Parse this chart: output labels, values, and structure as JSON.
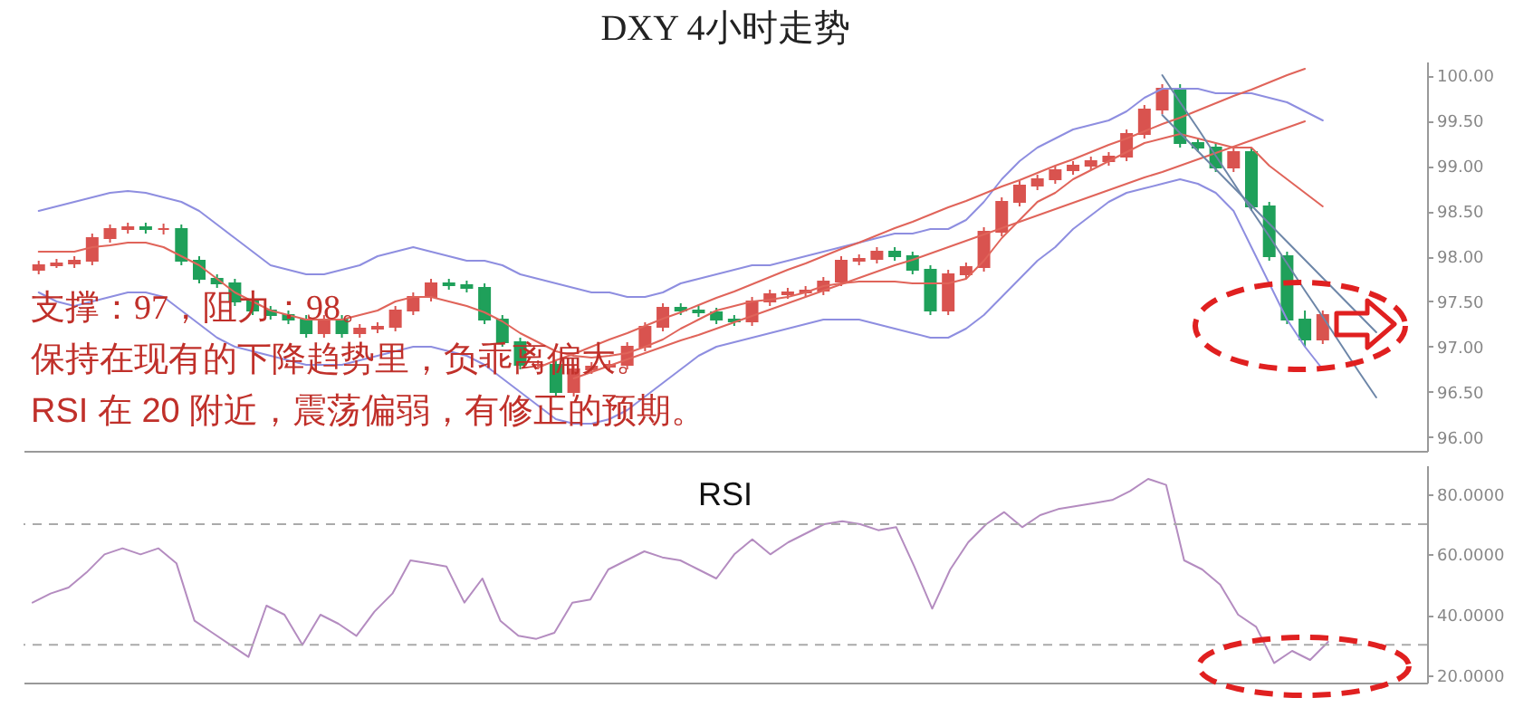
{
  "chart_data": [
    {
      "type": "candlestick",
      "title": "DXY   4小时走势",
      "categories": [
        null,
        null,
        null,
        null,
        null,
        null,
        null,
        null,
        null,
        null,
        null,
        null,
        null,
        null,
        null,
        null,
        null,
        null,
        null,
        null,
        null,
        null,
        null,
        null,
        null,
        null,
        null,
        null,
        null,
        null,
        null,
        null,
        null,
        null,
        null,
        null,
        null,
        null,
        null,
        null,
        null,
        null,
        null,
        null,
        null,
        null,
        null,
        null,
        null,
        null,
        null,
        null,
        null,
        null,
        null,
        null,
        null,
        null,
        null,
        null,
        null,
        null,
        null,
        null,
        null,
        null,
        null,
        null,
        null,
        null,
        null,
        null,
        null,
        null,
        null,
        null,
        null,
        null
      ],
      "ohlc": [
        [
          97.85,
          97.95,
          97.8,
          97.9
        ],
        [
          97.9,
          97.97,
          97.87,
          97.92
        ],
        [
          97.92,
          98.0,
          97.87,
          97.95
        ],
        [
          97.95,
          98.25,
          97.9,
          98.2
        ],
        [
          98.2,
          98.35,
          98.15,
          98.3
        ],
        [
          98.3,
          98.37,
          98.25,
          98.32
        ],
        [
          98.32,
          98.37,
          98.25,
          98.3
        ],
        [
          98.3,
          98.36,
          98.24,
          98.3
        ],
        [
          98.3,
          98.35,
          97.9,
          97.95
        ],
        [
          97.95,
          98.0,
          97.7,
          97.75
        ],
        [
          97.75,
          97.8,
          97.65,
          97.7
        ],
        [
          97.7,
          97.75,
          97.45,
          97.5
        ],
        [
          97.5,
          97.55,
          97.35,
          97.4
        ],
        [
          97.4,
          97.45,
          97.3,
          97.35
        ],
        [
          97.35,
          97.4,
          97.25,
          97.3
        ],
        [
          97.3,
          97.35,
          97.1,
          97.15
        ],
        [
          97.15,
          97.35,
          97.1,
          97.3
        ],
        [
          97.3,
          97.35,
          97.1,
          97.15
        ],
        [
          97.15,
          97.25,
          97.1,
          97.2
        ],
        [
          97.2,
          97.27,
          97.15,
          97.22
        ],
        [
          97.22,
          97.45,
          97.17,
          97.4
        ],
        [
          97.4,
          97.6,
          97.35,
          97.55
        ],
        [
          97.55,
          97.75,
          97.5,
          97.7
        ],
        [
          97.7,
          97.75,
          97.63,
          97.68
        ],
        [
          97.68,
          97.73,
          97.6,
          97.65
        ],
        [
          97.65,
          97.7,
          97.25,
          97.3
        ],
        [
          97.3,
          97.35,
          97.0,
          97.05
        ],
        [
          97.05,
          97.1,
          96.75,
          96.8
        ],
        [
          96.8,
          96.85,
          96.75,
          96.8
        ],
        [
          96.8,
          96.85,
          96.45,
          96.5
        ],
        [
          96.5,
          96.8,
          96.45,
          96.75
        ],
        [
          96.75,
          96.83,
          96.7,
          96.78
        ],
        [
          96.78,
          96.85,
          96.73,
          96.8
        ],
        [
          96.8,
          97.05,
          96.75,
          97.0
        ],
        [
          97.0,
          97.27,
          96.95,
          97.22
        ],
        [
          97.22,
          97.48,
          97.17,
          97.43
        ],
        [
          97.43,
          97.48,
          97.35,
          97.4
        ],
        [
          97.4,
          97.45,
          97.33,
          97.38
        ],
        [
          97.38,
          97.43,
          97.25,
          97.3
        ],
        [
          97.3,
          97.35,
          97.23,
          97.28
        ],
        [
          97.28,
          97.55,
          97.23,
          97.5
        ],
        [
          97.5,
          97.63,
          97.45,
          97.58
        ],
        [
          97.58,
          97.65,
          97.53,
          97.6
        ],
        [
          97.6,
          97.67,
          97.55,
          97.62
        ],
        [
          97.62,
          97.77,
          97.57,
          97.72
        ],
        [
          97.72,
          98.0,
          97.67,
          97.95
        ],
        [
          97.95,
          98.02,
          97.9,
          97.97
        ],
        [
          97.97,
          98.1,
          97.92,
          98.05
        ],
        [
          98.05,
          98.1,
          97.95,
          98.0
        ],
        [
          98.0,
          98.05,
          97.8,
          97.85
        ],
        [
          97.85,
          97.9,
          97.35,
          97.4
        ],
        [
          97.4,
          97.85,
          97.35,
          97.8
        ],
        [
          97.8,
          97.93,
          97.75,
          97.88
        ],
        [
          97.88,
          98.32,
          97.83,
          98.27
        ],
        [
          98.27,
          98.65,
          98.22,
          98.6
        ],
        [
          98.6,
          98.83,
          98.55,
          98.78
        ],
        [
          98.78,
          98.9,
          98.73,
          98.85
        ],
        [
          98.85,
          99.0,
          98.8,
          98.95
        ],
        [
          98.95,
          99.05,
          98.9,
          99.0
        ],
        [
          99.0,
          99.1,
          98.95,
          99.05
        ],
        [
          99.05,
          99.15,
          99.0,
          99.1
        ],
        [
          99.1,
          99.4,
          99.05,
          99.35
        ],
        [
          99.35,
          99.67,
          99.3,
          99.62
        ],
        [
          99.62,
          99.9,
          99.57,
          99.85
        ],
        [
          99.85,
          99.9,
          99.2,
          99.25
        ],
        [
          99.25,
          99.3,
          99.15,
          99.2
        ],
        [
          99.2,
          99.25,
          98.93,
          98.98
        ],
        [
          98.98,
          99.2,
          98.93,
          99.15
        ],
        [
          99.15,
          99.2,
          98.5,
          98.55
        ],
        [
          98.55,
          98.6,
          97.95,
          98.0
        ],
        [
          98.0,
          98.05,
          97.25,
          97.3
        ],
        [
          97.3,
          97.4,
          97.0,
          97.08
        ],
        [
          97.08,
          97.4,
          97.03,
          97.35
        ],
        null,
        null,
        null,
        null,
        null
      ],
      "colors": [
        "#d9534f",
        "#d9534f",
        "#d9534f",
        "#d9534f",
        "#d9534f",
        "#d9534f",
        "#1fa05a",
        "#d9534f",
        "#1fa05a",
        "#1fa05a",
        "#1fa05a",
        "#1fa05a",
        "#1fa05a",
        "#1fa05a",
        "#1fa05a",
        "#1fa05a",
        "#d9534f",
        "#1fa05a",
        "#d9534f",
        "#d9534f",
        "#d9534f",
        "#d9534f",
        "#d9534f",
        "#1fa05a",
        "#1fa05a",
        "#1fa05a",
        "#1fa05a",
        "#1fa05a",
        "#d9534f",
        "#1fa05a",
        "#d9534f",
        "#d9534f",
        "#d9534f",
        "#d9534f",
        "#d9534f",
        "#d9534f",
        "#1fa05a",
        "#1fa05a",
        "#1fa05a",
        "#1fa05a",
        "#d9534f",
        "#d9534f",
        "#d9534f",
        "#d9534f",
        "#d9534f",
        "#d9534f",
        "#d9534f",
        "#d9534f",
        "#1fa05a",
        "#1fa05a",
        "#1fa05a",
        "#d9534f",
        "#d9534f",
        "#d9534f",
        "#d9534f",
        "#d9534f",
        "#d9534f",
        "#d9534f",
        "#d9534f",
        "#d9534f",
        "#d9534f",
        "#d9534f",
        "#d9534f",
        "#d9534f",
        "#1fa05a",
        "#1fa05a",
        "#1fa05a",
        "#d9534f",
        "#1fa05a",
        "#1fa05a",
        "#1fa05a",
        "#1fa05a",
        "#d9534f",
        null,
        null,
        null,
        null,
        null
      ],
      "series": [
        {
          "type": "line",
          "color": "#8e8ee0",
          "values": [
            98.5,
            98.55,
            98.6,
            98.65,
            98.7,
            98.72,
            98.7,
            98.65,
            98.6,
            98.5,
            98.35,
            98.2,
            98.05,
            97.9,
            97.85,
            97.8,
            97.8,
            97.85,
            97.9,
            98.0,
            98.05,
            98.1,
            98.05,
            98.0,
            97.95,
            97.95,
            97.9,
            97.8,
            97.75,
            97.7,
            97.65,
            97.6,
            97.6,
            97.55,
            97.55,
            97.6,
            97.7,
            97.75,
            97.8,
            97.85,
            97.9,
            97.9,
            97.95,
            98.0,
            98.05,
            98.1,
            98.15,
            98.2,
            98.25,
            98.25,
            98.3,
            98.3,
            98.4,
            98.6,
            98.85,
            99.05,
            99.2,
            99.3,
            99.4,
            99.45,
            99.5,
            99.6,
            99.75,
            99.85,
            99.85,
            99.85,
            99.8,
            99.8,
            99.8,
            99.75,
            99.7,
            99.6,
            99.5,
            null,
            null,
            null,
            null,
            null
          ]
        },
        {
          "type": "line",
          "color": "#8e8ee0",
          "values": [
            97.6,
            97.5,
            97.45,
            97.5,
            97.55,
            97.6,
            97.6,
            97.55,
            97.4,
            97.25,
            97.1,
            97.0,
            96.95,
            96.9,
            96.85,
            96.8,
            96.8,
            96.8,
            96.85,
            96.9,
            96.95,
            97.0,
            97.0,
            96.95,
            96.9,
            96.8,
            96.65,
            96.5,
            96.35,
            96.2,
            96.15,
            96.15,
            96.2,
            96.3,
            96.45,
            96.6,
            96.75,
            96.9,
            97.0,
            97.05,
            97.1,
            97.15,
            97.2,
            97.25,
            97.3,
            97.3,
            97.3,
            97.25,
            97.2,
            97.15,
            97.1,
            97.1,
            97.2,
            97.35,
            97.55,
            97.75,
            97.95,
            98.1,
            98.3,
            98.45,
            98.6,
            98.7,
            98.75,
            98.8,
            98.85,
            98.8,
            98.7,
            98.5,
            98.1,
            97.7,
            97.3,
            97.0,
            96.75,
            null,
            null,
            null,
            null,
            null
          ]
        },
        {
          "type": "line",
          "color": "#e0645a",
          "values": [
            98.05,
            98.05,
            98.05,
            98.1,
            98.12,
            98.15,
            98.15,
            98.1,
            98.0,
            97.9,
            97.75,
            97.6,
            97.5,
            97.4,
            97.35,
            97.3,
            97.3,
            97.3,
            97.35,
            97.4,
            97.5,
            97.55,
            97.55,
            97.5,
            97.45,
            97.38,
            97.28,
            97.15,
            97.05,
            96.95,
            96.9,
            96.88,
            96.9,
            96.93,
            97.0,
            97.08,
            97.2,
            97.3,
            97.4,
            97.45,
            97.5,
            97.52,
            97.55,
            97.6,
            97.67,
            97.7,
            97.72,
            97.72,
            97.72,
            97.7,
            97.7,
            97.7,
            97.75,
            97.95,
            98.2,
            98.4,
            98.6,
            98.7,
            98.85,
            98.95,
            99.05,
            99.15,
            99.25,
            99.3,
            99.35,
            99.3,
            99.25,
            99.2,
            99.2,
            99.0,
            98.85,
            98.7,
            98.55,
            null,
            null,
            null,
            null,
            null
          ]
        },
        {
          "type": "line",
          "color": "#e0645a",
          "values": [
            null,
            null,
            null,
            null,
            null,
            null,
            null,
            null,
            null,
            null,
            null,
            null,
            null,
            null,
            null,
            null,
            null,
            null,
            null,
            null,
            null,
            null,
            null,
            null,
            null,
            null,
            null,
            null,
            96.77,
            96.85,
            96.92,
            97.0,
            97.08,
            97.15,
            97.23,
            97.31,
            97.38,
            97.46,
            97.54,
            97.61,
            97.69,
            97.77,
            97.85,
            97.92,
            98.0,
            98.08,
            98.15,
            98.23,
            98.31,
            98.38,
            98.46,
            98.54,
            98.61,
            98.69,
            98.77,
            98.84,
            98.92,
            99.0,
            99.07,
            99.15,
            99.23,
            99.3,
            99.38,
            99.46,
            99.53,
            99.61,
            99.69,
            99.77,
            99.84,
            99.92,
            100.0,
            100.07,
            null,
            null,
            null,
            null,
            null,
            null
          ]
        },
        {
          "type": "line",
          "color": "#e0645a",
          "values": [
            null,
            null,
            null,
            null,
            null,
            null,
            null,
            null,
            null,
            null,
            null,
            null,
            null,
            null,
            null,
            null,
            null,
            null,
            null,
            null,
            null,
            null,
            null,
            null,
            null,
            null,
            null,
            null,
            null,
            null,
            96.65,
            96.72,
            96.79,
            96.86,
            96.93,
            97.0,
            97.07,
            97.13,
            97.2,
            97.27,
            97.34,
            97.41,
            97.48,
            97.55,
            97.62,
            97.69,
            97.76,
            97.83,
            97.9,
            97.96,
            98.03,
            98.1,
            98.17,
            98.24,
            98.31,
            98.38,
            98.45,
            98.52,
            98.59,
            98.66,
            98.73,
            98.8,
            98.87,
            98.93,
            99.0,
            99.07,
            99.14,
            99.21,
            99.28,
            99.35,
            99.42,
            99.49,
            null,
            null,
            null,
            null,
            null,
            null
          ]
        },
        {
          "type": "line",
          "color": "#6d86a8",
          "values": [
            null,
            null,
            null,
            null,
            null,
            null,
            null,
            null,
            null,
            null,
            null,
            null,
            null,
            null,
            null,
            null,
            null,
            null,
            null,
            null,
            null,
            null,
            null,
            null,
            null,
            null,
            null,
            null,
            null,
            null,
            null,
            null,
            null,
            null,
            null,
            null,
            null,
            null,
            null,
            null,
            null,
            null,
            null,
            null,
            null,
            null,
            null,
            null,
            null,
            null,
            null,
            null,
            null,
            null,
            null,
            null,
            null,
            null,
            null,
            null,
            null,
            null,
            null,
            100.0,
            99.7,
            99.41,
            99.11,
            98.81,
            98.51,
            98.22,
            97.92,
            97.62,
            97.33,
            97.03,
            96.73,
            96.44,
            null,
            null
          ]
        },
        {
          "type": "line",
          "color": "#6d86a8",
          "values": [
            null,
            null,
            null,
            null,
            null,
            null,
            null,
            null,
            null,
            null,
            null,
            null,
            null,
            null,
            null,
            null,
            null,
            null,
            null,
            null,
            null,
            null,
            null,
            null,
            null,
            null,
            null,
            null,
            null,
            null,
            null,
            null,
            null,
            null,
            null,
            null,
            null,
            null,
            null,
            null,
            null,
            null,
            null,
            null,
            null,
            null,
            null,
            null,
            null,
            null,
            null,
            null,
            null,
            null,
            null,
            null,
            null,
            null,
            null,
            null,
            null,
            null,
            null,
            99.56,
            99.36,
            99.16,
            98.96,
            98.76,
            98.56,
            98.36,
            98.16,
            97.96,
            97.76,
            97.56,
            97.36,
            97.16,
            null,
            null
          ]
        }
      ],
      "ylim": [
        95.85,
        100.15
      ],
      "yticks": [
        {
          "value": 96,
          "label": "96.00"
        },
        {
          "value": 96.5,
          "label": "96.50"
        },
        {
          "value": 97,
          "label": "97.00"
        },
        {
          "value": 97.5,
          "label": "97.50"
        },
        {
          "value": 98,
          "label": "98.00"
        },
        {
          "value": 98.5,
          "label": "98.50"
        },
        {
          "value": 99,
          "label": "99.00"
        },
        {
          "value": 99.5,
          "label": "99.50"
        },
        {
          "value": 100,
          "label": "100.00"
        }
      ],
      "tick_labels": "y",
      "annotations": [
        "支撑：97，阻力：98。",
        "保持在现有的下降趋势里，负乖离偏大。",
        "RSI 在 20 附近，震荡偏弱，有修正的预期。"
      ]
    },
    {
      "type": "line",
      "title": "RSI",
      "categories": [
        null,
        null,
        null,
        null,
        null,
        null,
        null,
        null,
        null,
        null,
        null,
        null,
        null,
        null,
        null,
        null,
        null,
        null,
        null,
        null,
        null,
        null,
        null,
        null,
        null,
        null,
        null,
        null,
        null,
        null,
        null,
        null,
        null,
        null,
        null,
        null,
        null,
        null,
        null,
        null,
        null,
        null,
        null,
        null,
        null,
        null,
        null,
        null,
        null,
        null,
        null,
        null,
        null,
        null,
        null,
        null,
        null,
        null,
        null,
        null,
        null,
        null,
        null,
        null,
        null,
        null,
        null,
        null,
        null,
        null,
        null,
        null,
        null,
        null,
        null,
        null,
        null,
        null
      ],
      "series": [
        {
          "color": "#b48cc0",
          "values": [
            44,
            47,
            49,
            54,
            60,
            62,
            60,
            62,
            57,
            38,
            34,
            30,
            26,
            43,
            40,
            30,
            40,
            37,
            33,
            41,
            47,
            58,
            57,
            56,
            44,
            52,
            38,
            33,
            32,
            34,
            44,
            45,
            55,
            58,
            61,
            59,
            58,
            55,
            52,
            60,
            65,
            60,
            64,
            67,
            70,
            71,
            70,
            68,
            69,
            56,
            42,
            55,
            64,
            70,
            74,
            69,
            73,
            75,
            76,
            77,
            78,
            81,
            85,
            83,
            58,
            55,
            50,
            40,
            36,
            24,
            28,
            25,
            31,
            null,
            null,
            null,
            null,
            null
          ]
        }
      ],
      "ylim": [
        17.5,
        89.5
      ],
      "yticks": [
        {
          "value": 20,
          "label": "20.0000"
        },
        {
          "value": 40,
          "label": "40.0000"
        },
        {
          "value": 60,
          "label": "60.0000"
        },
        {
          "value": 80,
          "label": "80.0000"
        }
      ],
      "tick_labels": "y",
      "ref_lines": [
        {
          "axis": "y",
          "value": 70,
          "color": "#aaaaaa",
          "line_style": "dashed"
        },
        {
          "axis": "y",
          "value": 30,
          "color": "#aaaaaa",
          "line_style": "dashed"
        }
      ]
    }
  ]
}
